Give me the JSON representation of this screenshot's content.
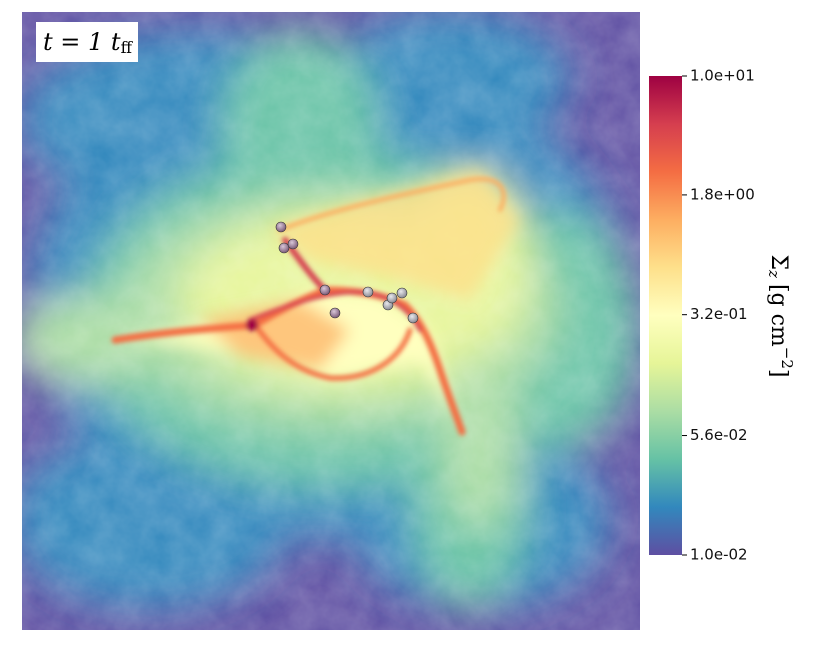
{
  "chart_data": {
    "type": "image",
    "annotation": {
      "text": "t = 1 t",
      "subscript": "ff"
    },
    "colorbar": {
      "label": {
        "symbol": "Σ",
        "symbol_subscript": "z",
        "unit": "[g cm",
        "unit_superscript": "−2",
        "close": "]"
      },
      "lim": [
        0.01,
        10
      ],
      "scale": "log",
      "ticks": [
        {
          "value": 10,
          "label": "1.0e+01"
        },
        {
          "value": 1.8,
          "label": "1.8e+00"
        },
        {
          "value": 0.32,
          "label": "3.2e-01"
        },
        {
          "value": 0.056,
          "label": "5.6e-02"
        },
        {
          "value": 0.01,
          "label": "1.0e-02"
        }
      ],
      "colormap": [
        "#5e4fa2",
        "#3288bd",
        "#66c2a5",
        "#abdda4",
        "#e6f598",
        "#ffffbf",
        "#fee08b",
        "#fdae61",
        "#f46d43",
        "#d53e4f",
        "#9e0142"
      ]
    }
  }
}
